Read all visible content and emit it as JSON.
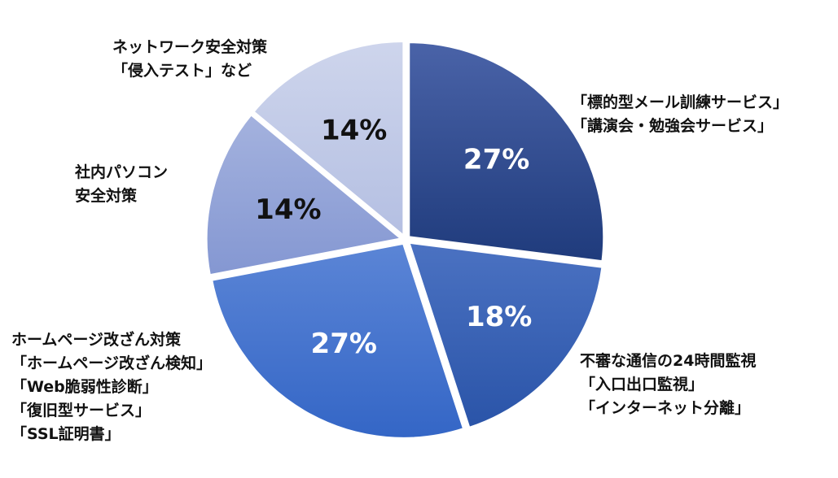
{
  "chart_data": {
    "type": "pie",
    "title": "",
    "start_angle_deg": 0,
    "direction": "clockwise",
    "slices": [
      {
        "label_lines": [
          "「標的型メール訓練サービス」",
          "「講演会・勉強会サービス」"
        ],
        "value": 27,
        "value_label": "27%",
        "color": "#2c4b8e",
        "value_label_color": "#ffffff"
      },
      {
        "label_lines": [
          "不審な通信の24時間監視",
          "「入口出口監視」",
          "「インターネット分離」"
        ],
        "value": 18,
        "value_label": "18%",
        "color": "#3660b4",
        "value_label_color": "#ffffff"
      },
      {
        "label_lines": [
          "ホームページ改ざん対策",
          "「ホームページ改ざん検知」",
          "「Web脆弱性診断」",
          "「復旧型サービス」",
          "「SSL証明書」"
        ],
        "value": 27,
        "value_label": "27%",
        "color": "#4a7bd0",
        "value_label_color": "#ffffff"
      },
      {
        "label_lines": [
          "社内パソコン",
          "安全対策"
        ],
        "value": 14,
        "value_label": "14%",
        "color": "#94a5d8",
        "value_label_color": "#111111"
      },
      {
        "label_lines": [
          "ネットワーク安全対策",
          "「侵入テスト」など"
        ],
        "value": 14,
        "value_label": "14%",
        "color": "#c3cbe6",
        "value_label_color": "#111111"
      }
    ],
    "legend": "none"
  }
}
